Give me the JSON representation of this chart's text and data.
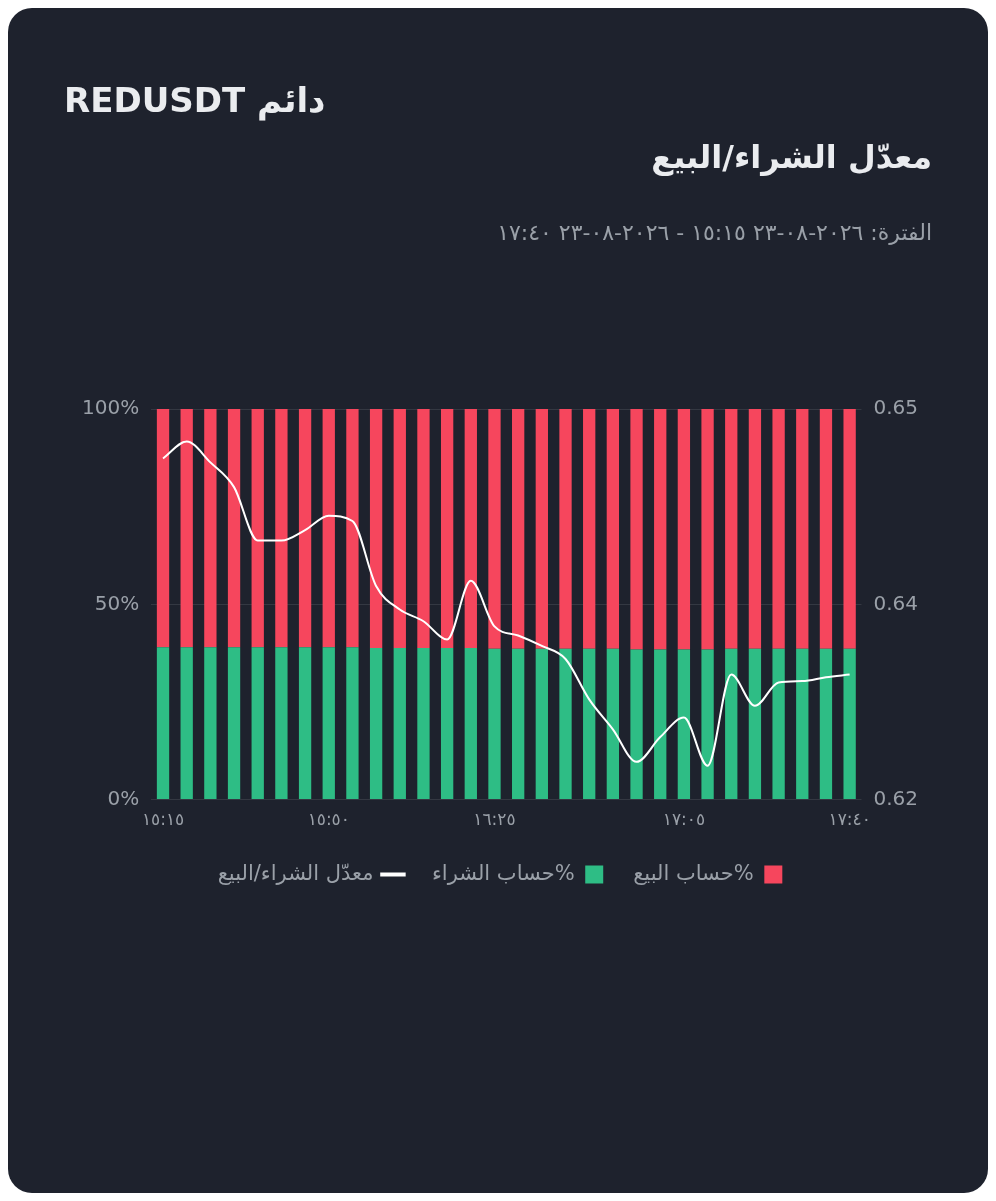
{
  "chart_data": {
    "type": "bar",
    "title": "معدّل الشراء/البيع",
    "subtitle": "الفترة: ٢٠٢٦-٠٨-٢٣ ١٥:١٥ - ٢٠٢٦-٠٨-٢٣ ١٧:٤٠",
    "annotations": [
      "REDUSDT دائم"
    ],
    "categories": [
      "١٥:١٥",
      null,
      null,
      null,
      null,
      null,
      null,
      "١٥:٥٠",
      null,
      null,
      null,
      null,
      null,
      null,
      "١٦:٢٥",
      null,
      null,
      null,
      null,
      null,
      null,
      null,
      "١٧:٠٥",
      null,
      null,
      null,
      null,
      null,
      null,
      "١٧:٤٠"
    ],
    "stacked": true,
    "series": [
      {
        "name": "حساب الشراء%",
        "color": "#2ebd85",
        "values": [
          39.0,
          39.0,
          39.0,
          39.0,
          39.0,
          39.0,
          39.0,
          39.0,
          39.0,
          38.8,
          38.8,
          38.8,
          38.8,
          38.8,
          38.6,
          38.6,
          38.6,
          38.6,
          38.6,
          38.6,
          38.4,
          38.4,
          38.4,
          38.4,
          38.6,
          38.6,
          38.6,
          38.6,
          38.6,
          38.6
        ]
      },
      {
        "name": "حساب البيع%",
        "color": "#f6465d",
        "values": [
          61.0,
          61.0,
          61.0,
          61.0,
          61.0,
          61.0,
          61.0,
          61.0,
          61.0,
          61.2,
          61.2,
          61.2,
          61.2,
          61.2,
          61.4,
          61.4,
          61.4,
          61.4,
          61.4,
          61.4,
          61.6,
          61.6,
          61.6,
          61.6,
          61.4,
          61.4,
          61.4,
          61.4,
          61.4,
          61.4
        ]
      },
      {
        "name": "معدّل الشراء/البيع",
        "type": "line",
        "axis": "y2",
        "color": "#ffffff",
        "values": [
          0.6462,
          0.6475,
          0.6459,
          0.644,
          0.6399,
          0.6399,
          0.6407,
          0.6418,
          0.6414,
          0.6364,
          0.6346,
          0.6337,
          0.6323,
          0.6368,
          0.6333,
          0.6326,
          0.6318,
          0.6308,
          0.6277,
          0.6254,
          0.6229,
          0.6248,
          0.6263,
          0.6226,
          0.6296,
          0.6272,
          0.629,
          0.6291,
          0.6294,
          0.6296
        ]
      }
    ],
    "ylim": [
      0,
      100
    ],
    "yticks": [
      {
        "value": 0,
        "label": "0%"
      },
      {
        "value": 50,
        "label": "50%"
      },
      {
        "value": 100,
        "label": "100%"
      }
    ],
    "y2lim": [
      0.62,
      0.65
    ],
    "y2ticks": [
      {
        "value": 0.62,
        "label": "0.62"
      },
      {
        "value": 0.635,
        "label": "0.64"
      },
      {
        "value": 0.65,
        "label": "0.65"
      }
    ],
    "grid": "y",
    "legend": "bottom",
    "marker": "none",
    "line_style": "solid"
  }
}
